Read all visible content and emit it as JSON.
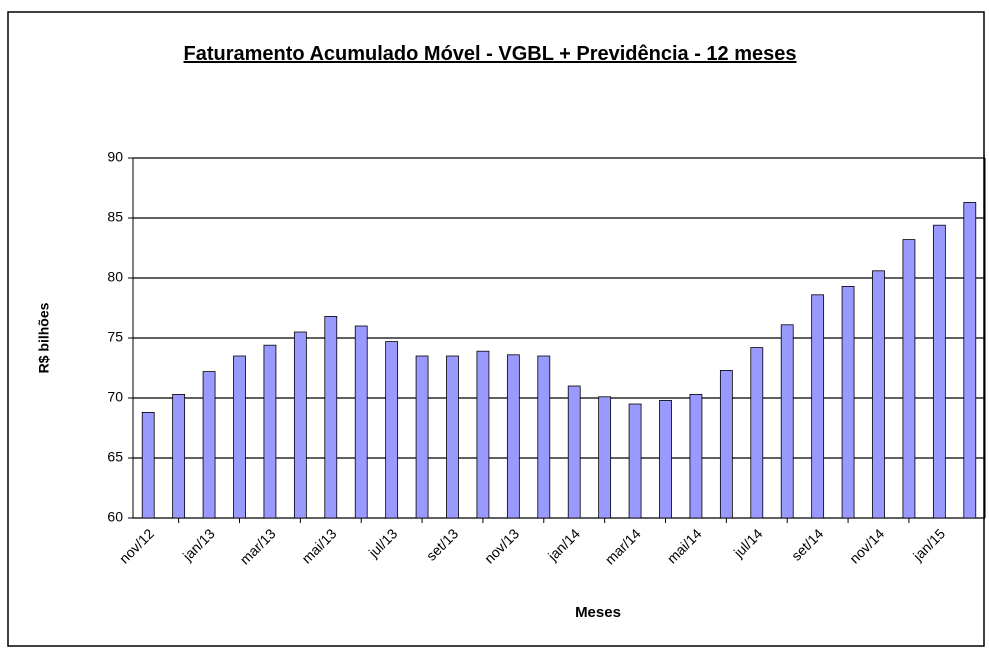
{
  "chart_data": {
    "type": "bar",
    "title": "Faturamento Acumulado Móvel - VGBL + Previdência - 12 meses",
    "x_label": "Meses",
    "y_label": "R$ bilhões",
    "categories": [
      "nov/12",
      null,
      "jan/13",
      null,
      "mar/13",
      null,
      "mai/13",
      null,
      "jul/13",
      null,
      "set/13",
      null,
      "nov/13",
      null,
      "jan/14",
      null,
      "mar/14",
      null,
      "mai/14",
      null,
      "jul/14",
      null,
      "set/14",
      null,
      "nov/14",
      null,
      "jan/15",
      null
    ],
    "values": [
      68.8,
      70.3,
      72.2,
      73.5,
      74.4,
      75.5,
      76.8,
      76.0,
      74.7,
      73.5,
      73.5,
      73.9,
      73.6,
      73.5,
      71.0,
      70.1,
      69.5,
      69.8,
      70.3,
      72.3,
      74.2,
      76.1,
      78.6,
      79.3,
      80.6,
      83.2,
      84.4,
      86.3
    ],
    "color": "#9999ff",
    "ylim": [
      60,
      90
    ],
    "yticks": [
      60,
      65,
      70,
      75,
      80,
      85,
      90
    ],
    "grid": true
  }
}
